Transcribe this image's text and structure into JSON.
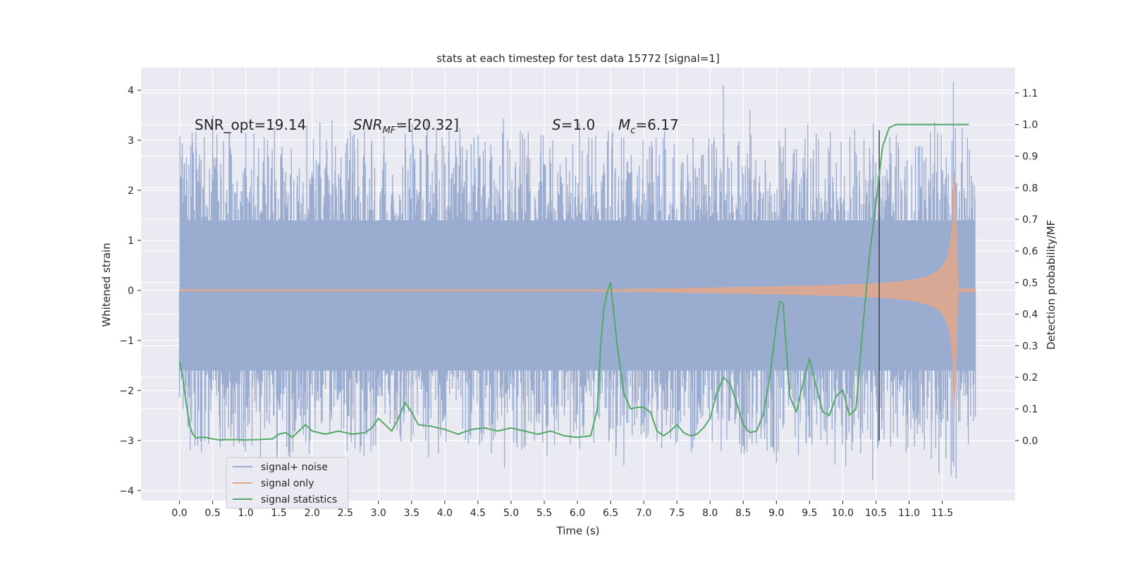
{
  "chart_data": {
    "type": "line",
    "title": "stats at each timestep for test data 15772 [signal=1]",
    "xlabel": "Time (s)",
    "ylabel_left": "Whitened strain",
    "ylabel_right": "Detection probability/MF",
    "xlim": [
      -0.58,
      12.6
    ],
    "ylim_left": [
      -4.2,
      4.45
    ],
    "ylim_right": [
      -0.19,
      1.18
    ],
    "x_ticks": [
      0.0,
      0.5,
      1.0,
      1.5,
      2.0,
      2.5,
      3.0,
      3.5,
      4.0,
      4.5,
      5.0,
      5.5,
      6.0,
      6.5,
      7.0,
      7.5,
      8.0,
      8.5,
      9.0,
      9.5,
      10.0,
      10.5,
      11.0,
      11.5
    ],
    "y_ticks_left": [
      -4,
      -3,
      -2,
      -1,
      0,
      1,
      2,
      3,
      4
    ],
    "y_ticks_right": [
      0.0,
      0.1,
      0.2,
      0.3,
      0.4,
      0.5,
      0.6,
      0.7,
      0.8,
      0.9,
      1.0,
      1.1
    ],
    "annotations": {
      "snr_opt": "SNR_opt=19.14",
      "snr_mf_main": "SNR",
      "snr_mf_sub": "MF",
      "snr_mf_value": "=[20.32]",
      "s_main": "S",
      "s_value": "=1.0",
      "mc_main": "M",
      "mc_sub": "c",
      "mc_value": "=6.17"
    },
    "detection_time": 10.55,
    "series": [
      {
        "name": "signal+ noise",
        "color": "#9aaccf",
        "x_range": [
          0.0,
          12.0
        ],
        "typical_band": [
          -1.6,
          1.4
        ],
        "peaks": [
          [
            0.5,
            3.5
          ],
          [
            1.0,
            3.15
          ],
          [
            2.3,
            3.4
          ],
          [
            2.9,
            3.0
          ],
          [
            8.2,
            4.1
          ],
          [
            8.6,
            3.6
          ],
          [
            6.7,
            -3.5
          ],
          [
            4.9,
            -3.55
          ],
          [
            10.45,
            -3.8
          ],
          [
            11.45,
            -3.65
          ],
          [
            9.0,
            -3.45
          ]
        ]
      },
      {
        "name": "signal only",
        "color": "#e3a78b",
        "chirp_start": 6.6,
        "merger_time": 11.68,
        "peak_amplitude": 2.4
      },
      {
        "name": "signal statistics",
        "color": "#55a868",
        "x": [
          0.0,
          0.05,
          0.1,
          0.15,
          0.2,
          0.25,
          0.3,
          0.4,
          0.5,
          0.6,
          0.8,
          1.0,
          1.2,
          1.4,
          1.5,
          1.6,
          1.7,
          1.8,
          1.9,
          2.0,
          2.2,
          2.4,
          2.6,
          2.8,
          2.9,
          3.0,
          3.1,
          3.2,
          3.3,
          3.4,
          3.5,
          3.6,
          3.8,
          4.0,
          4.2,
          4.4,
          4.6,
          4.8,
          5.0,
          5.2,
          5.4,
          5.6,
          5.8,
          6.0,
          6.2,
          6.3,
          6.35,
          6.4,
          6.45,
          6.5,
          6.55,
          6.6,
          6.7,
          6.8,
          6.9,
          7.0,
          7.1,
          7.2,
          7.3,
          7.4,
          7.5,
          7.6,
          7.7,
          7.8,
          7.9,
          8.0,
          8.1,
          8.2,
          8.3,
          8.4,
          8.5,
          8.6,
          8.7,
          8.8,
          8.9,
          9.0,
          9.05,
          9.1,
          9.2,
          9.3,
          9.4,
          9.5,
          9.6,
          9.7,
          9.8,
          9.9,
          10.0,
          10.1,
          10.2,
          10.3,
          10.4,
          10.5,
          10.6,
          10.7,
          10.8,
          11.0,
          11.5,
          11.9
        ],
        "values": [
          0.25,
          0.2,
          0.12,
          0.05,
          0.02,
          0.008,
          0.01,
          0.01,
          0.005,
          0.002,
          0.003,
          0.002,
          0.003,
          0.005,
          0.02,
          0.025,
          0.01,
          0.03,
          0.05,
          0.03,
          0.02,
          0.03,
          0.02,
          0.025,
          0.04,
          0.07,
          0.05,
          0.03,
          0.07,
          0.12,
          0.09,
          0.05,
          0.045,
          0.035,
          0.02,
          0.035,
          0.04,
          0.03,
          0.04,
          0.03,
          0.02,
          0.03,
          0.015,
          0.01,
          0.015,
          0.1,
          0.3,
          0.42,
          0.47,
          0.5,
          0.4,
          0.3,
          0.15,
          0.1,
          0.105,
          0.105,
          0.09,
          0.03,
          0.015,
          0.03,
          0.05,
          0.025,
          0.015,
          0.02,
          0.04,
          0.07,
          0.15,
          0.2,
          0.18,
          0.12,
          0.05,
          0.025,
          0.03,
          0.08,
          0.2,
          0.37,
          0.44,
          0.435,
          0.14,
          0.09,
          0.18,
          0.26,
          0.17,
          0.09,
          0.08,
          0.14,
          0.16,
          0.08,
          0.1,
          0.35,
          0.58,
          0.75,
          0.93,
          0.99,
          1.0,
          1.0,
          1.0,
          1.0
        ]
      }
    ],
    "legend": {
      "position": "lower-left",
      "entries": [
        "signal+ noise",
        "signal only",
        "signal statistics"
      ]
    },
    "grid": true,
    "background": "#eaeaf2"
  }
}
